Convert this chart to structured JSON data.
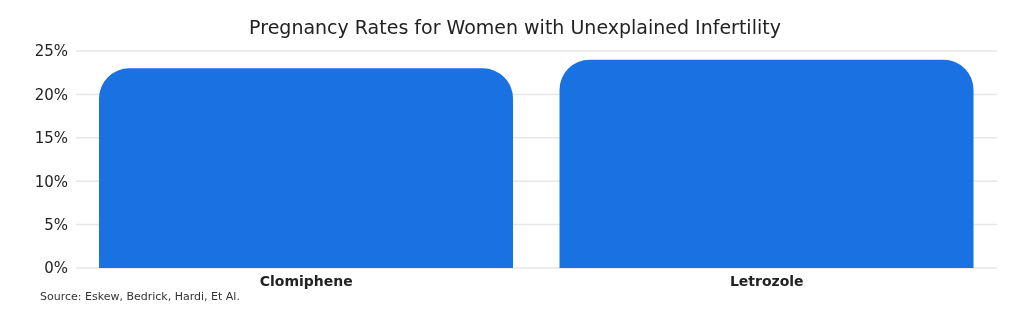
{
  "chart_data": {
    "type": "bar",
    "title": "Pregnancy Rates for Women with Unexplained Infertility",
    "categories": [
      "Clomiphene",
      "Letrozole"
    ],
    "values": [
      23,
      24
    ],
    "color": "#1a71e2",
    "ylim": [
      0,
      25
    ],
    "yticks": [
      {
        "value": 0,
        "label": "0%"
      },
      {
        "value": 5,
        "label": "5%"
      },
      {
        "value": 10,
        "label": "10%"
      },
      {
        "value": 15,
        "label": "15%"
      },
      {
        "value": 20,
        "label": "20%"
      },
      {
        "value": 25,
        "label": "25%"
      }
    ],
    "grid": "y",
    "annotations": [
      "Source: Eskew, Bedrick, Hardi, Et Al."
    ]
  }
}
